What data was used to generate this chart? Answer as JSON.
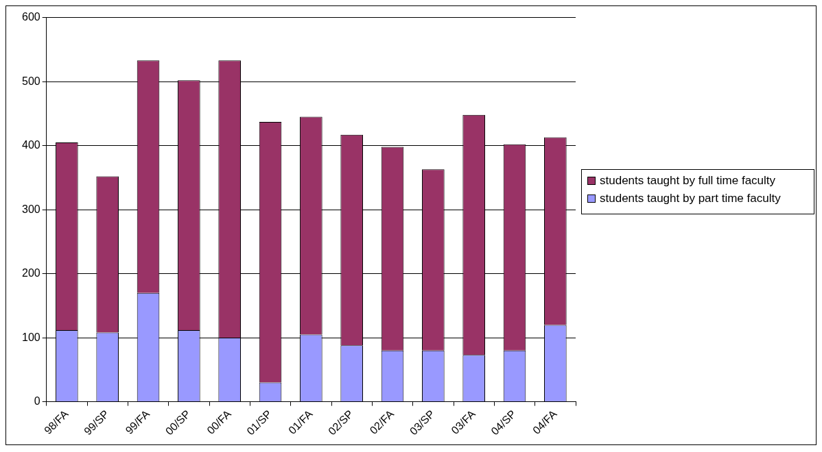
{
  "chart_data": {
    "type": "bar",
    "stacked": true,
    "categories": [
      "98/FA",
      "99/SP",
      "99/FA",
      "00/SP",
      "00/FA",
      "01/SP",
      "01/FA",
      "02/SP",
      "02/FA",
      "03/SP",
      "03/FA",
      "04/SP",
      "04/FA"
    ],
    "series": [
      {
        "name": "students taught by part time faculty",
        "color": "#9999ff",
        "values": [
          112,
          108,
          170,
          112,
          100,
          30,
          105,
          88,
          80,
          80,
          73,
          80,
          120
        ]
      },
      {
        "name": "students taught by full time faculty",
        "color": "#993366",
        "values": [
          293,
          244,
          363,
          390,
          433,
          407,
          340,
          329,
          318,
          283,
          375,
          322,
          293
        ]
      }
    ],
    "ylim": [
      0,
      600
    ],
    "yticks": [
      0,
      100,
      200,
      300,
      400,
      500,
      600
    ],
    "grid": "y",
    "legend": "right"
  }
}
